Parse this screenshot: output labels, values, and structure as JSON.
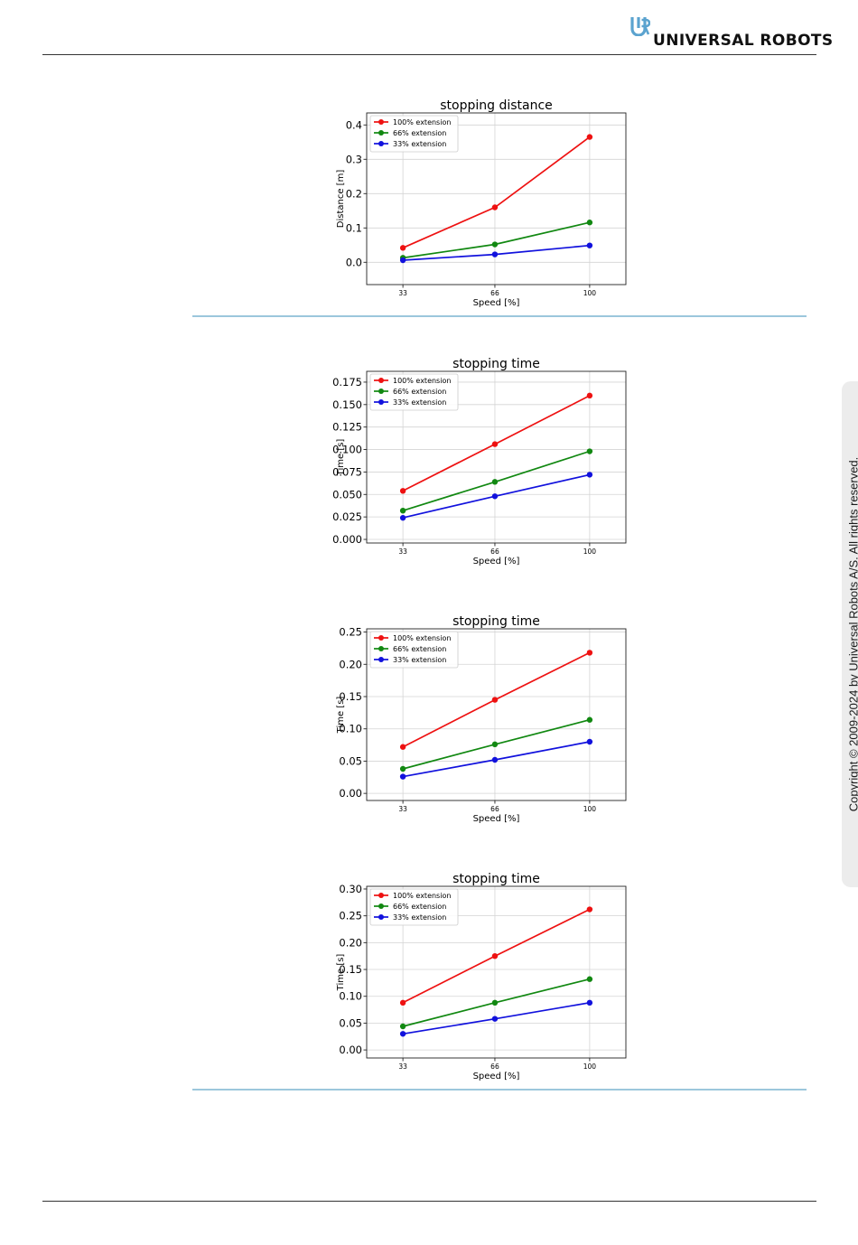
{
  "header": {
    "brand": "UNIVERSAL ROBOTS",
    "logo_icon": "ur-logo-icon"
  },
  "sidebar": {
    "copyright": "Copyright © 2009-2024 by Universal Robots A/S. All rights reserved."
  },
  "colors": {
    "series_100": "#ee1111",
    "series_66": "#118811",
    "series_33": "#1111dd",
    "separator": "#9cc7dc"
  },
  "chart_data": [
    {
      "type": "line",
      "title": "stopping distance",
      "xlabel": "Speed [%]",
      "ylabel": "Distance [m]",
      "x": [
        33,
        66,
        100
      ],
      "xlim": [
        20,
        113
      ],
      "ylim": [
        -0.065,
        0.435
      ],
      "yticks": [
        0.0,
        0.1,
        0.2,
        0.3,
        0.4
      ],
      "ytick_labels": [
        "0.0",
        "0.1",
        "0.2",
        "0.3",
        "0.4"
      ],
      "grid": true,
      "legend": "top-left",
      "series": [
        {
          "name": "100% extension",
          "color": "#ee1111",
          "values": [
            0.042,
            0.16,
            0.365
          ]
        },
        {
          "name": "66% extension",
          "color": "#118811",
          "values": [
            0.013,
            0.052,
            0.116
          ]
        },
        {
          "name": "33% extension",
          "color": "#1111dd",
          "values": [
            0.006,
            0.023,
            0.049
          ]
        }
      ]
    },
    {
      "type": "line",
      "title": "stopping time",
      "xlabel": "Speed [%]",
      "ylabel": "Time [s]",
      "x": [
        33,
        66,
        100
      ],
      "xlim": [
        20,
        113
      ],
      "ylim": [
        -0.004,
        0.187
      ],
      "yticks": [
        0.0,
        0.025,
        0.05,
        0.075,
        0.1,
        0.125,
        0.15,
        0.175
      ],
      "ytick_labels": [
        "0.000",
        "0.025",
        "0.050",
        "0.075",
        "0.100",
        "0.125",
        "0.150",
        "0.175"
      ],
      "grid": true,
      "legend": "top-left",
      "series": [
        {
          "name": "100% extension",
          "color": "#ee1111",
          "values": [
            0.054,
            0.106,
            0.16
          ]
        },
        {
          "name": "66% extension",
          "color": "#118811",
          "values": [
            0.032,
            0.064,
            0.098
          ]
        },
        {
          "name": "33% extension",
          "color": "#1111dd",
          "values": [
            0.024,
            0.048,
            0.072
          ]
        }
      ]
    },
    {
      "type": "line",
      "title": "stopping time",
      "xlabel": "Speed [%]",
      "ylabel": "Time [s]",
      "x": [
        33,
        66,
        100
      ],
      "xlim": [
        20,
        113
      ],
      "ylim": [
        -0.011,
        0.255
      ],
      "yticks": [
        0.0,
        0.05,
        0.1,
        0.15,
        0.2,
        0.25
      ],
      "ytick_labels": [
        "0.00",
        "0.05",
        "0.10",
        "0.15",
        "0.20",
        "0.25"
      ],
      "grid": true,
      "legend": "top-left",
      "series": [
        {
          "name": "100% extension",
          "color": "#ee1111",
          "values": [
            0.072,
            0.145,
            0.218
          ]
        },
        {
          "name": "66% extension",
          "color": "#118811",
          "values": [
            0.038,
            0.076,
            0.114
          ]
        },
        {
          "name": "33% extension",
          "color": "#1111dd",
          "values": [
            0.026,
            0.052,
            0.08
          ]
        }
      ]
    },
    {
      "type": "line",
      "title": "stopping time",
      "xlabel": "Speed [%]",
      "ylabel": "Time [s]",
      "x": [
        33,
        66,
        100
      ],
      "xlim": [
        20,
        113
      ],
      "ylim": [
        -0.015,
        0.305
      ],
      "yticks": [
        0.0,
        0.05,
        0.1,
        0.15,
        0.2,
        0.25,
        0.3
      ],
      "ytick_labels": [
        "0.00",
        "0.05",
        "0.10",
        "0.15",
        "0.20",
        "0.25",
        "0.30"
      ],
      "grid": true,
      "legend": "top-left",
      "series": [
        {
          "name": "100% extension",
          "color": "#ee1111",
          "values": [
            0.088,
            0.175,
            0.262
          ]
        },
        {
          "name": "66% extension",
          "color": "#118811",
          "values": [
            0.044,
            0.088,
            0.132
          ]
        },
        {
          "name": "33% extension",
          "color": "#1111dd",
          "values": [
            0.03,
            0.058,
            0.088
          ]
        }
      ]
    }
  ]
}
